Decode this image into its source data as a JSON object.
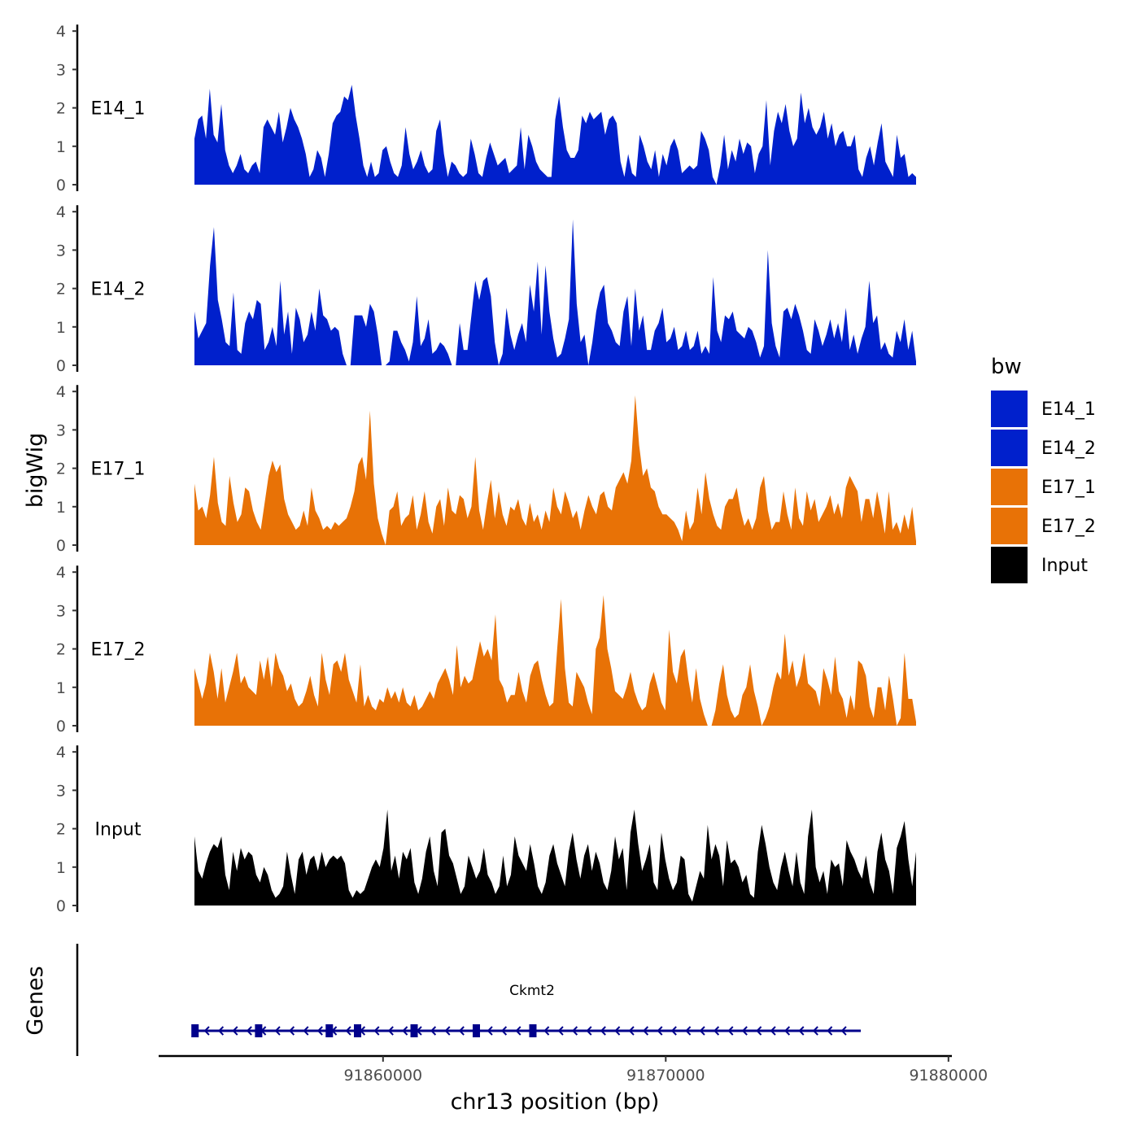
{
  "chart_data": {
    "type": "area",
    "chromosome": "chr13",
    "region": [
      91853000,
      91879000
    ],
    "xlabel": "chr13 position (bp)",
    "ylabel": "bigWig",
    "genes_label": "Genes",
    "x_ticks": [
      91860000,
      91870000,
      91880000
    ],
    "x_tick_labels": [
      "91860000",
      "91870000",
      "91880000"
    ],
    "y_ticks": [
      0,
      1,
      2,
      3,
      4
    ],
    "y_tick_labels": [
      "0",
      "1",
      "2",
      "3",
      "4"
    ],
    "ylim": [
      0,
      4
    ],
    "legend": {
      "title": "bw",
      "entries": [
        {
          "name": "E14_1",
          "color": "#0020cc"
        },
        {
          "name": "E14_2",
          "color": "#0020cc"
        },
        {
          "name": "E17_1",
          "color": "#e87206"
        },
        {
          "name": "E17_2",
          "color": "#e87206"
        },
        {
          "name": "Input",
          "color": "#000000"
        }
      ]
    },
    "tracks": [
      {
        "name": "E14_1",
        "color": "#0020cc",
        "values": [
          1.2,
          1.7,
          1.8,
          1.2,
          2.5,
          1.3,
          1.1,
          2.1,
          0.9,
          0.5,
          0.3,
          0.5,
          0.8,
          0.4,
          0.3,
          0.5,
          0.6,
          0.3,
          1.5,
          1.7,
          1.5,
          1.3,
          1.9,
          1.1,
          1.5,
          2.0,
          1.7,
          1.5,
          1.2,
          0.8,
          0.2,
          0.4,
          0.9,
          0.7,
          0.2,
          0.8,
          1.6,
          1.8,
          1.9,
          2.3,
          2.2,
          2.6,
          1.8,
          1.2,
          0.5,
          0.2,
          0.6,
          0.2,
          0.3,
          0.9,
          1.0,
          0.6,
          0.3,
          0.2,
          0.5,
          1.5,
          0.8,
          0.4,
          0.6,
          0.9,
          0.5,
          0.3,
          0.4,
          1.4,
          1.7,
          0.8,
          0.2,
          0.6,
          0.5,
          0.3,
          0.2,
          0.3,
          1.2,
          0.8,
          0.3,
          0.2,
          0.7,
          1.1,
          0.8,
          0.5,
          0.6,
          0.7,
          0.3,
          0.4,
          0.5,
          1.5,
          0.4,
          1.3,
          1.0,
          0.6,
          0.4,
          0.3,
          0.2,
          0.2,
          1.7,
          2.3,
          1.5,
          0.9,
          0.7,
          0.7,
          0.9,
          1.8,
          1.6,
          1.9,
          1.7,
          1.8,
          1.9,
          1.3,
          1.7,
          1.8,
          1.6,
          0.6,
          0.2,
          0.8,
          0.3,
          0.2,
          1.3,
          1.0,
          0.6,
          0.4,
          0.9,
          0.2,
          0.8,
          0.5,
          1.0,
          1.2,
          0.9,
          0.3,
          0.4,
          0.5,
          0.4,
          0.5,
          1.4,
          1.2,
          0.9,
          0.2,
          0.0,
          0.5,
          1.3,
          0.4,
          0.9,
          0.6,
          1.2,
          0.8,
          1.1,
          1.0,
          0.3,
          0.8,
          1.0,
          2.2,
          0.5,
          1.4,
          1.9,
          1.6,
          2.1,
          1.4,
          1.0,
          1.2,
          2.4,
          1.6,
          2.0,
          1.5,
          1.3,
          1.5,
          1.9,
          1.2,
          1.6,
          1.0,
          1.3,
          1.4,
          1.0,
          1.0,
          1.3,
          0.4,
          0.2,
          0.7,
          1.0,
          0.5,
          1.1,
          1.6,
          0.6,
          0.4,
          0.2,
          1.3,
          0.7,
          0.8,
          0.2,
          0.3,
          0.2
        ]
      },
      {
        "name": "E14_2",
        "color": "#0020cc",
        "values": [
          1.4,
          0.7,
          0.9,
          1.1,
          2.6,
          3.6,
          1.7,
          1.2,
          0.6,
          0.5,
          1.9,
          0.4,
          0.3,
          1.1,
          1.4,
          1.2,
          1.7,
          1.6,
          0.4,
          0.6,
          1.0,
          0.5,
          2.2,
          0.8,
          1.4,
          0.3,
          1.5,
          1.2,
          0.6,
          0.8,
          1.4,
          0.9,
          2.0,
          1.3,
          1.2,
          0.9,
          1.0,
          0.9,
          0.3,
          0.0,
          0.0,
          1.3,
          1.3,
          1.3,
          1.0,
          1.6,
          1.4,
          0.8,
          0.0,
          0.0,
          0.1,
          0.9,
          0.9,
          0.6,
          0.4,
          0.1,
          0.6,
          1.8,
          0.5,
          0.7,
          1.2,
          0.3,
          0.4,
          0.6,
          0.5,
          0.3,
          0.0,
          0.0,
          1.1,
          0.4,
          0.4,
          1.3,
          2.2,
          1.7,
          2.2,
          2.3,
          1.8,
          0.6,
          0.0,
          0.3,
          1.5,
          0.8,
          0.4,
          0.8,
          1.1,
          0.6,
          2.1,
          1.4,
          2.7,
          0.8,
          2.6,
          1.4,
          0.7,
          0.2,
          0.3,
          0.7,
          1.2,
          3.8,
          1.6,
          0.6,
          0.8,
          0.0,
          0.6,
          1.4,
          1.9,
          2.1,
          1.1,
          0.9,
          0.6,
          0.5,
          1.4,
          1.8,
          0.5,
          2.0,
          0.9,
          1.3,
          0.4,
          0.4,
          0.9,
          1.1,
          1.5,
          0.6,
          0.7,
          1.0,
          0.4,
          0.5,
          0.9,
          0.4,
          0.5,
          0.9,
          0.3,
          0.5,
          0.3,
          2.3,
          0.9,
          0.6,
          1.3,
          1.2,
          1.4,
          0.9,
          0.8,
          0.7,
          1.0,
          0.9,
          0.6,
          0.2,
          0.5,
          3.0,
          1.1,
          0.5,
          0.2,
          1.4,
          1.5,
          1.2,
          1.6,
          1.3,
          0.9,
          0.4,
          0.3,
          1.2,
          0.9,
          0.5,
          0.8,
          1.2,
          0.7,
          1.1,
          0.6,
          1.5,
          0.4,
          0.8,
          0.3,
          0.7,
          1.0,
          2.2,
          1.1,
          1.3,
          0.4,
          0.6,
          0.3,
          0.2,
          0.9,
          0.6,
          1.2,
          0.4,
          0.9,
          0.1
        ]
      },
      {
        "name": "E17_1",
        "color": "#e87206",
        "values": [
          1.6,
          0.9,
          1.0,
          0.7,
          1.3,
          2.3,
          1.1,
          0.6,
          0.5,
          1.8,
          1.1,
          0.6,
          0.8,
          1.5,
          1.4,
          0.9,
          0.6,
          0.4,
          1.1,
          1.8,
          2.2,
          1.9,
          2.1,
          1.2,
          0.8,
          0.6,
          0.4,
          0.5,
          0.9,
          0.5,
          1.5,
          0.9,
          0.7,
          0.4,
          0.5,
          0.4,
          0.6,
          0.5,
          0.6,
          0.7,
          1.0,
          1.4,
          2.1,
          2.3,
          1.7,
          3.5,
          1.6,
          0.7,
          0.3,
          0.0,
          0.9,
          1.0,
          1.4,
          0.5,
          0.7,
          0.8,
          1.3,
          0.4,
          0.8,
          1.4,
          0.6,
          0.3,
          1.0,
          1.2,
          0.5,
          1.5,
          0.9,
          0.8,
          1.3,
          1.2,
          0.7,
          1.0,
          2.3,
          0.9,
          0.4,
          1.1,
          1.7,
          0.7,
          1.4,
          0.8,
          0.5,
          1.0,
          0.9,
          1.2,
          0.7,
          0.5,
          1.1,
          0.6,
          0.8,
          0.4,
          0.9,
          0.6,
          1.5,
          1.0,
          0.8,
          1.4,
          1.1,
          0.7,
          0.9,
          0.4,
          0.9,
          1.3,
          1.0,
          0.8,
          1.3,
          1.4,
          1.0,
          0.9,
          1.5,
          1.7,
          1.9,
          1.6,
          2.2,
          3.9,
          2.6,
          1.8,
          2.0,
          1.5,
          1.4,
          1.0,
          0.8,
          0.8,
          0.7,
          0.6,
          0.4,
          0.1,
          0.9,
          0.4,
          0.6,
          1.5,
          0.8,
          1.9,
          1.2,
          0.8,
          0.5,
          0.4,
          1.0,
          1.2,
          1.2,
          1.5,
          0.9,
          0.5,
          0.7,
          0.4,
          0.7,
          1.5,
          1.8,
          0.9,
          0.4,
          0.6,
          0.6,
          1.4,
          0.8,
          0.4,
          1.5,
          0.7,
          0.5,
          1.4,
          0.9,
          1.2,
          0.6,
          0.8,
          1.0,
          1.3,
          0.8,
          1.1,
          0.7,
          1.5,
          1.8,
          1.6,
          1.4,
          0.6,
          1.2,
          1.2,
          0.7,
          1.4,
          0.9,
          0.3,
          1.4,
          0.4,
          0.6,
          0.3,
          0.8,
          0.4,
          1.0,
          0.1
        ]
      },
      {
        "name": "E17_2",
        "color": "#e87206",
        "values": [
          1.5,
          1.1,
          0.7,
          1.1,
          1.9,
          1.4,
          0.7,
          1.5,
          0.6,
          1.0,
          1.4,
          1.9,
          1.1,
          1.3,
          1.0,
          0.9,
          0.8,
          1.7,
          1.2,
          1.8,
          1.0,
          1.9,
          1.5,
          1.3,
          0.9,
          1.1,
          0.7,
          0.5,
          0.6,
          0.9,
          1.3,
          0.8,
          0.5,
          1.9,
          1.2,
          0.8,
          1.6,
          1.7,
          1.4,
          1.9,
          1.2,
          0.9,
          0.6,
          1.6,
          0.5,
          0.8,
          0.5,
          0.4,
          0.7,
          0.6,
          1.0,
          0.7,
          0.9,
          0.6,
          1.0,
          0.6,
          0.5,
          0.8,
          0.4,
          0.5,
          0.7,
          0.9,
          0.7,
          1.1,
          1.3,
          1.5,
          1.2,
          0.8,
          2.1,
          1.0,
          1.3,
          1.1,
          1.2,
          1.7,
          2.2,
          1.8,
          2.0,
          1.7,
          2.9,
          1.2,
          1.0,
          0.6,
          0.8,
          0.8,
          1.4,
          0.9,
          0.6,
          1.3,
          1.6,
          1.7,
          1.2,
          0.8,
          0.5,
          0.6,
          2.0,
          3.3,
          1.5,
          0.6,
          0.5,
          1.4,
          1.2,
          1.0,
          0.6,
          0.3,
          2.0,
          2.3,
          3.4,
          2.0,
          1.5,
          0.9,
          0.8,
          0.7,
          1.0,
          1.4,
          0.9,
          0.6,
          0.4,
          0.5,
          1.1,
          1.4,
          1.0,
          0.6,
          0.4,
          2.5,
          1.4,
          1.1,
          1.8,
          2.0,
          1.2,
          0.6,
          1.5,
          0.7,
          0.3,
          0.0,
          0.0,
          0.4,
          1.1,
          1.6,
          0.8,
          0.4,
          0.2,
          0.3,
          0.8,
          1.0,
          1.6,
          0.9,
          0.5,
          0.0,
          0.2,
          0.5,
          1.0,
          1.4,
          1.2,
          2.4,
          1.3,
          1.7,
          1.0,
          1.3,
          1.9,
          1.1,
          1.0,
          0.9,
          0.5,
          1.5,
          1.2,
          0.8,
          1.8,
          0.9,
          0.7,
          0.2,
          0.8,
          0.4,
          1.7,
          1.6,
          1.3,
          0.5,
          0.2,
          1.0,
          1.0,
          0.4,
          1.3,
          0.7,
          0.0,
          0.2,
          1.9,
          0.7,
          0.7,
          0.1
        ]
      },
      {
        "name": "Input",
        "color": "#000000",
        "values": [
          1.8,
          0.9,
          0.7,
          1.1,
          1.4,
          1.6,
          1.5,
          1.8,
          0.8,
          0.4,
          1.4,
          0.9,
          1.5,
          1.2,
          1.4,
          1.3,
          0.8,
          0.6,
          1.0,
          0.8,
          0.4,
          0.2,
          0.3,
          0.5,
          1.4,
          0.8,
          0.3,
          1.2,
          1.4,
          0.8,
          1.2,
          1.3,
          0.9,
          1.4,
          1.0,
          1.2,
          1.3,
          1.2,
          1.3,
          1.1,
          0.4,
          0.2,
          0.4,
          0.3,
          0.4,
          0.7,
          1.0,
          1.2,
          1.0,
          1.5,
          2.5,
          0.9,
          1.3,
          0.7,
          1.4,
          1.2,
          1.5,
          0.6,
          0.3,
          0.7,
          1.4,
          1.8,
          0.9,
          0.5,
          1.9,
          2.0,
          1.3,
          1.1,
          0.7,
          0.3,
          0.5,
          1.3,
          1.0,
          0.7,
          0.9,
          1.5,
          0.8,
          0.6,
          0.3,
          0.5,
          1.3,
          0.5,
          0.8,
          1.8,
          1.3,
          1.1,
          0.9,
          1.6,
          1.1,
          0.5,
          0.3,
          0.6,
          1.3,
          1.6,
          1.1,
          0.8,
          0.5,
          1.4,
          1.9,
          1.2,
          0.7,
          1.3,
          1.6,
          0.9,
          1.4,
          1.1,
          0.6,
          0.4,
          0.9,
          1.8,
          1.2,
          1.5,
          0.4,
          1.9,
          2.5,
          1.6,
          0.9,
          1.2,
          1.6,
          0.6,
          0.4,
          1.9,
          1.2,
          0.7,
          0.4,
          0.6,
          1.3,
          1.2,
          0.3,
          0.1,
          0.5,
          0.9,
          0.7,
          2.1,
          1.2,
          1.6,
          1.3,
          0.5,
          1.7,
          1.1,
          1.2,
          1.0,
          0.6,
          0.8,
          0.3,
          0.2,
          1.4,
          2.1,
          1.6,
          1.0,
          0.6,
          0.4,
          1.0,
          1.4,
          0.9,
          0.5,
          1.4,
          0.6,
          0.3,
          1.8,
          2.5,
          1.0,
          0.6,
          0.9,
          0.3,
          1.2,
          1.0,
          1.1,
          0.5,
          1.7,
          1.4,
          1.2,
          0.9,
          0.7,
          1.3,
          0.6,
          0.3,
          1.4,
          1.9,
          1.2,
          0.9,
          0.3,
          1.5,
          1.8,
          2.2,
          1.2,
          0.5,
          1.4
        ]
      }
    ],
    "genes": [
      {
        "name": "Ckmt2",
        "start": 91853300,
        "end": 91876900,
        "strand": "-",
        "color": "#00008b",
        "exons": [
          91853350,
          91855600,
          91858100,
          91859100,
          91861100,
          91863300,
          91865300
        ]
      }
    ]
  }
}
